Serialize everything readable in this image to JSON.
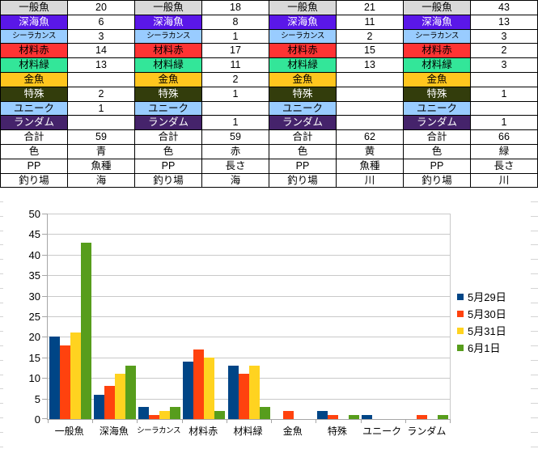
{
  "table": {
    "rows": [
      {
        "label": "一般魚",
        "bg": "#D9D9D9",
        "fg": "#000000",
        "values": [
          "20",
          "18",
          "21",
          "43"
        ]
      },
      {
        "label": "深海魚",
        "bg": "#5A17E8",
        "fg": "#FFFFFF",
        "values": [
          "6",
          "8",
          "11",
          "13"
        ]
      },
      {
        "label": "シーラカンス",
        "bg": "#99CCFF",
        "fg": "#000000",
        "values": [
          "3",
          "1",
          "2",
          "3"
        ]
      },
      {
        "label": "材料赤",
        "bg": "#FF3333",
        "fg": "#000000",
        "values": [
          "14",
          "17",
          "15",
          "2"
        ]
      },
      {
        "label": "材料緑",
        "bg": "#33E699",
        "fg": "#000000",
        "values": [
          "13",
          "11",
          "13",
          "3"
        ]
      },
      {
        "label": "金魚",
        "bg": "#FFC61E",
        "fg": "#000000",
        "values": [
          "",
          "2",
          "",
          ""
        ]
      },
      {
        "label": "特殊",
        "bg": "#333D0C",
        "fg": "#FFFFFF",
        "values": [
          "2",
          "1",
          "",
          "1"
        ]
      },
      {
        "label": "ユニーク",
        "bg": "#99CCFF",
        "fg": "#000000",
        "values": [
          "1",
          "",
          "",
          ""
        ]
      },
      {
        "label": "ランダム",
        "bg": "#45236B",
        "fg": "#FFFFFF",
        "values": [
          "",
          "1",
          "",
          "1"
        ]
      },
      {
        "label": "合計",
        "bg": "#FFFFFF",
        "fg": "#000000",
        "values": [
          "59",
          "59",
          "62",
          "66"
        ]
      },
      {
        "label": "色",
        "bg": "#FFFFFF",
        "fg": "#000000",
        "values": [
          "青",
          "赤",
          "黄",
          "緑"
        ]
      },
      {
        "label": "PP",
        "bg": "#FFFFFF",
        "fg": "#000000",
        "values": [
          "魚種",
          "長さ",
          "魚種",
          "長さ"
        ]
      },
      {
        "label": "釣り場",
        "bg": "#FFFFFF",
        "fg": "#000000",
        "values": [
          "海",
          "海",
          "川",
          "川"
        ]
      }
    ]
  },
  "chart_data": {
    "type": "bar",
    "categories": [
      "一般魚",
      "深海魚",
      "シーラカンス",
      "材料赤",
      "材料緑",
      "金魚",
      "特殊",
      "ユニーク",
      "ランダム"
    ],
    "series": [
      {
        "name": "5月29日",
        "color": "#004586",
        "values": [
          20,
          6,
          3,
          14,
          13,
          0,
          2,
          1,
          0
        ]
      },
      {
        "name": "5月30日",
        "color": "#FF420E",
        "values": [
          18,
          8,
          1,
          17,
          11,
          2,
          1,
          0,
          1
        ]
      },
      {
        "name": "5月31日",
        "color": "#FFD320",
        "values": [
          21,
          11,
          2,
          15,
          13,
          0,
          0,
          0,
          0
        ]
      },
      {
        "name": "6月1日",
        "color": "#579D1C",
        "values": [
          43,
          13,
          3,
          2,
          3,
          0,
          1,
          0,
          1
        ]
      }
    ],
    "title": "",
    "xlabel": "",
    "ylabel": "",
    "ylim": [
      0,
      50
    ],
    "yticks": [
      0,
      5,
      10,
      15,
      20,
      25,
      30,
      35,
      40,
      45,
      50
    ],
    "grid": true,
    "legend_position": "right"
  }
}
